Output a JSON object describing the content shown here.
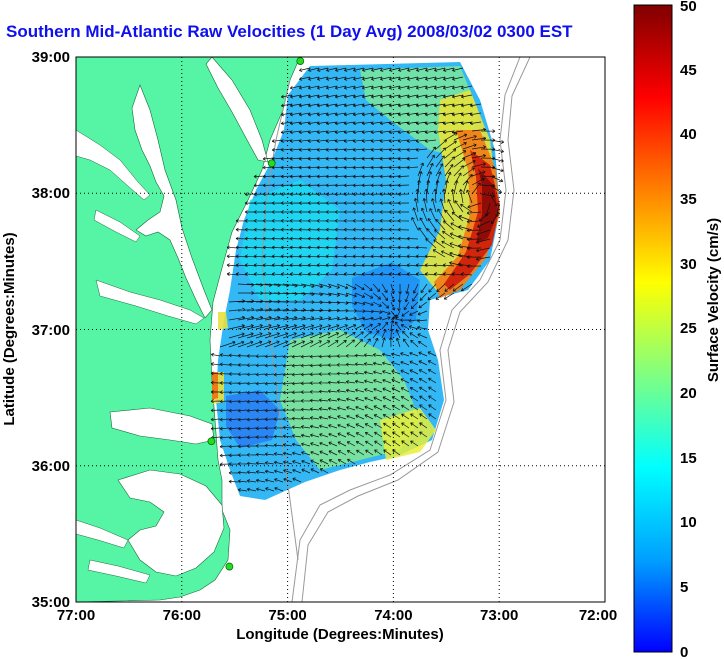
{
  "chart_data": {
    "type": "heatmap",
    "title": "Southern Mid-Atlantic Raw Velocities (1 Day Avg) 2008/03/02 0300 EST",
    "xlabel": "Longitude (Degrees:Minutes)",
    "ylabel": "Latitude (Degrees:Minutes)",
    "xlim": [
      -77,
      -72
    ],
    "ylim": [
      35,
      39
    ],
    "x_ticks": [
      -77,
      -76,
      -75,
      -74,
      -73,
      -72
    ],
    "x_tick_labels": [
      "77:00",
      "76:00",
      "75:00",
      "74:00",
      "73:00",
      "72:00"
    ],
    "y_ticks": [
      35,
      36,
      37,
      38,
      39
    ],
    "y_tick_labels": [
      "35:00",
      "36:00",
      "37:00",
      "38:00",
      "39:00"
    ],
    "grid": true,
    "colorbar": {
      "label": "Surface Velocity (cm/s)",
      "range": [
        0,
        50
      ],
      "ticks": [
        0,
        5,
        10,
        15,
        20,
        25,
        30,
        35,
        40,
        45,
        50
      ],
      "colormap": [
        "#0000ff",
        "#00a0ff",
        "#00ffff",
        "#80ff80",
        "#ffff00",
        "#ff8000",
        "#ff0000",
        "#800000"
      ]
    },
    "land_color": "#55f5a5",
    "stations": [
      {
        "lon": -74.88,
        "lat": 38.97
      },
      {
        "lon": -75.15,
        "lat": 38.22
      },
      {
        "lon": -75.72,
        "lat": 36.18
      },
      {
        "lon": -75.55,
        "lat": 35.26
      }
    ]
  }
}
